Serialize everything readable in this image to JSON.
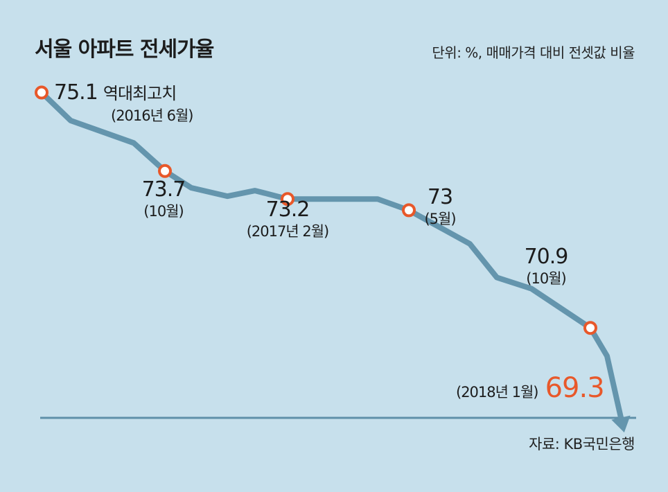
{
  "chart_data": {
    "type": "line",
    "title": "서울 아파트 전세가율",
    "unit_note": "단위: %, 매매가격 대비 전셋값 비율",
    "source": "자료: KB국민은행",
    "series": [
      {
        "values": [
          75.1,
          74.6,
          74.2,
          73.7,
          73.4,
          73.25,
          73.35,
          73.2,
          73.2,
          73.2,
          73.0,
          72.4,
          71.8,
          71.6,
          70.9,
          70.4,
          69.3
        ]
      }
    ],
    "ylim": [
      68.9,
      75.7
    ],
    "annotations": [
      {
        "value": "75.1",
        "note": "역대최고치",
        "date": "(2016년 6월)",
        "index": 0
      },
      {
        "value": "73.7",
        "date": "(10월)",
        "index": 3
      },
      {
        "value": "73.2",
        "date": "(2017년 2월)",
        "index": 7
      },
      {
        "value": "73",
        "date": "(5월)",
        "index": 10
      },
      {
        "value": "70.9",
        "date": "(10월)",
        "index": 14
      },
      {
        "value": "69.3",
        "date": "(2018년 1월)",
        "index": 16
      }
    ],
    "highlight_color": "#e8582a",
    "line_color": "#6495ad"
  }
}
